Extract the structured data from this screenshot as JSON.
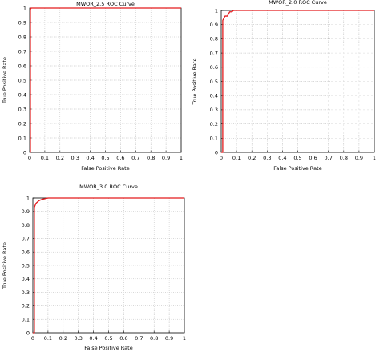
{
  "chart_data": [
    {
      "type": "line",
      "title": "MWOR_2.5 ROC Curve",
      "xlabel": "False Positive Rate",
      "ylabel": "True Positive Rate",
      "xlim": [
        0,
        1
      ],
      "ylim": [
        0,
        1
      ],
      "xticks": [
        "0",
        "0.1",
        "0.2",
        "0.3",
        "0.4",
        "0.5",
        "0.6",
        "0.7",
        "0.8",
        "0.9",
        "1"
      ],
      "yticks": [
        "0",
        "0.1",
        "0.2",
        "0.3",
        "0.4",
        "0.5",
        "0.6",
        "0.7",
        "0.8",
        "0.9",
        "1"
      ],
      "grid": true,
      "line_color": "#e41a1c",
      "series": [
        {
          "x": [
            0,
            0.005,
            0.005,
            0.01,
            1
          ],
          "y": [
            0,
            0,
            0.99,
            1,
            1
          ]
        }
      ]
    },
    {
      "type": "line",
      "title": "MWOR_2.0 ROC Curve",
      "xlabel": "False Positive Rate",
      "ylabel": "True Positive Rate",
      "xlim": [
        0,
        1
      ],
      "ylim": [
        0,
        1
      ],
      "xticks": [
        "0",
        "0.1",
        "0.2",
        "0.3",
        "0.4",
        "0.5",
        "0.6",
        "0.7",
        "0.8",
        "0.9",
        "1"
      ],
      "yticks": [
        "0",
        "0.1",
        "0.2",
        "0.3",
        "0.4",
        "0.5",
        "0.6",
        "0.7",
        "0.8",
        "0.9",
        "1"
      ],
      "grid": true,
      "line_color": "#e41a1c",
      "series": [
        {
          "x": [
            0,
            0.01,
            0.01,
            0.02,
            0.025,
            0.04,
            0.05,
            0.055,
            0.07,
            0.08,
            1
          ],
          "y": [
            0,
            0,
            0.93,
            0.95,
            0.96,
            0.96,
            0.98,
            0.99,
            0.99,
            1,
            1
          ]
        }
      ]
    },
    {
      "type": "line",
      "title": "MWOR_3.0 ROC Curve",
      "xlabel": "False Positive Rate",
      "ylabel": "True Positive Rate",
      "xlim": [
        0,
        1
      ],
      "ylim": [
        0,
        1
      ],
      "xticks": [
        "0",
        "0.1",
        "0.2",
        "0.3",
        "0.4",
        "0.5",
        "0.6",
        "0.7",
        "0.8",
        "0.9",
        "1"
      ],
      "yticks": [
        "0",
        "0.1",
        "0.2",
        "0.3",
        "0.4",
        "0.5",
        "0.6",
        "0.7",
        "0.8",
        "0.9",
        "1"
      ],
      "grid": true,
      "line_color": "#e41a1c",
      "series": [
        {
          "x": [
            0,
            0.01,
            0.01,
            0.02,
            0.03,
            0.04,
            0.05,
            0.06,
            0.08,
            0.1,
            1
          ],
          "y": [
            0,
            0,
            0.93,
            0.96,
            0.97,
            0.98,
            0.985,
            0.99,
            0.995,
            1,
            1
          ]
        }
      ]
    }
  ]
}
